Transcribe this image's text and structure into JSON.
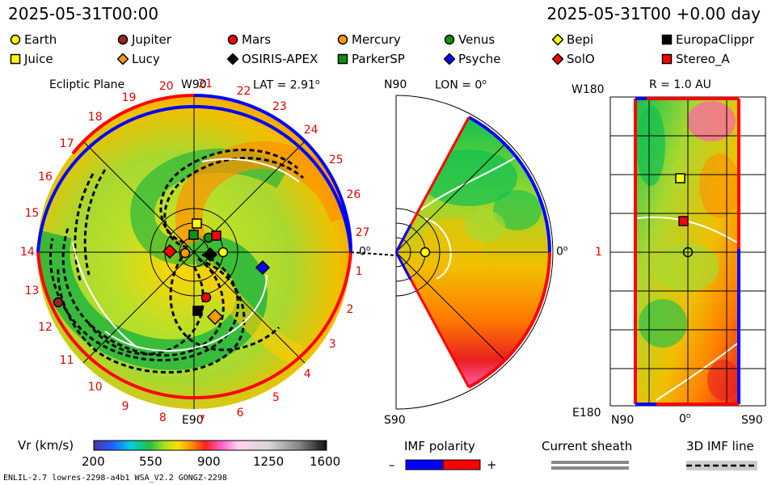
{
  "header": {
    "left_timestamp": "2025-05-31T00:00",
    "right_timestamp": "2025-05-31T00 +0.00 day"
  },
  "legend": [
    {
      "label": "Earth",
      "shape": "circle",
      "color": "#ffff00"
    },
    {
      "label": "Jupiter",
      "shape": "circle",
      "color": "#a02020"
    },
    {
      "label": "Mars",
      "shape": "circle",
      "color": "#ff0000"
    },
    {
      "label": "Mercury",
      "shape": "circle",
      "color": "#ff9900"
    },
    {
      "label": "Venus",
      "shape": "circle",
      "color": "#109010"
    },
    {
      "label": "Bepi",
      "shape": "diamond",
      "color": "#ffff00"
    },
    {
      "label": "EuropaClippr",
      "shape": "square",
      "color": "#000000"
    },
    {
      "label": "Juice",
      "shape": "square",
      "color": "#ffff00"
    },
    {
      "label": "Lucy",
      "shape": "diamond",
      "color": "#ff9900"
    },
    {
      "label": "OSIRIS-APEX",
      "shape": "diamond",
      "color": "#000000"
    },
    {
      "label": "ParkerSP",
      "shape": "square",
      "color": "#109010"
    },
    {
      "label": "Psyche",
      "shape": "diamond",
      "color": "#0000ff"
    },
    {
      "label": "SolO",
      "shape": "diamond",
      "color": "#ff0000"
    },
    {
      "label": "Stereo_A",
      "shape": "square",
      "color": "#ff0000"
    }
  ],
  "ecliptic": {
    "title": "Ecliptic Plane",
    "top_label": "W90",
    "bottom_label": "E90",
    "lat_label": "LAT = 2.91",
    "lat_sup": "o",
    "day_ticks": [
      "1",
      "2",
      "3",
      "4",
      "5",
      "6",
      "7",
      "8",
      "9",
      "10",
      "11",
      "12",
      "13",
      "14",
      "15",
      "16",
      "17",
      "18",
      "19",
      "20",
      "21",
      "22",
      "23",
      "24",
      "25",
      "26",
      "27"
    ]
  },
  "meridional": {
    "top_label": "N90",
    "bottom_label": "S90",
    "lon_label": "LON = 0",
    "lon_sup": "o",
    "right_label": "0",
    "right_sup": "o",
    "left_label": "0",
    "left_sup": "o"
  },
  "sphere": {
    "title": "R = 1.0 AU",
    "top_label": "W180",
    "mid_label": "1",
    "bottom_label": "E180",
    "x_left": "N90",
    "x_mid": "0",
    "x_mid_sup": "o",
    "x_right": "S90"
  },
  "colorbar": {
    "label": "Vr (km/s)",
    "ticks": [
      "200",
      "550",
      "900",
      "1250",
      "1600"
    ]
  },
  "imf": {
    "label": "IMF polarity",
    "minus": "–",
    "plus": "+"
  },
  "sheath": {
    "label": "Current sheath"
  },
  "imf3d": {
    "label": "3D IMF line"
  },
  "footer": {
    "model": "ENLIL-2.7 lowres-2298-a4b1 WSA_V2.2 GONGZ-2298"
  },
  "colors": {
    "red_polarity": "#ff0000",
    "blue_polarity": "#0000ff"
  }
}
